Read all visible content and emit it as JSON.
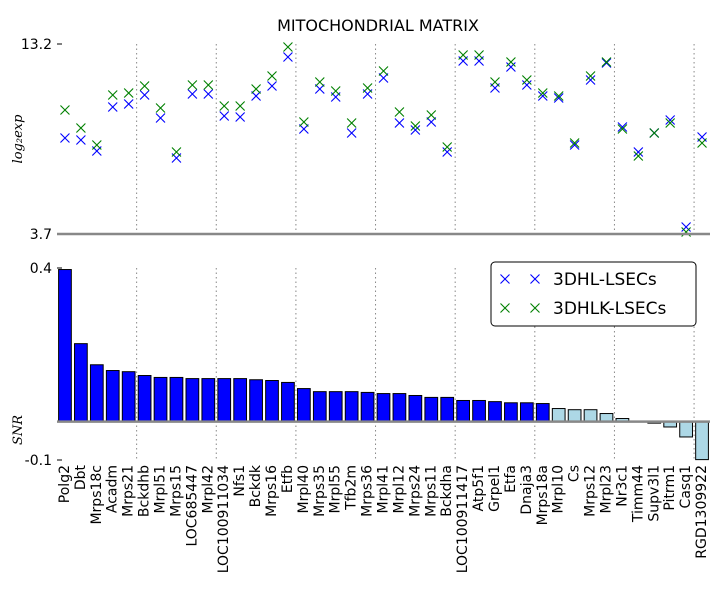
{
  "chart_data": [
    {
      "type": "scatter",
      "title": "MITOCHONDRIAL MATRIX",
      "ylabel": "log₂exp",
      "ylim": [
        3.7,
        13.2
      ],
      "yticks": [
        3.7,
        13.2
      ],
      "legend": "upper right",
      "series": [
        {
          "name": "3DHL-LSECs",
          "color": "#0000ff",
          "values": [
            8.5,
            8.4,
            7.85,
            10.05,
            10.2,
            10.65,
            9.5,
            7.5,
            10.7,
            10.7,
            9.6,
            9.55,
            10.6,
            11.1,
            12.55,
            8.95,
            10.95,
            10.55,
            8.75,
            10.7,
            11.5,
            9.25,
            8.9,
            9.3,
            7.8,
            12.35,
            12.35,
            11.0,
            12.05,
            11.15,
            10.6,
            10.5,
            8.15,
            11.4,
            12.25,
            9.05,
            7.8,
            8.75,
            9.4,
            4.05,
            8.55
          ]
        },
        {
          "name": "3DHLK-LSECs",
          "color": "#008000",
          "values": [
            9.9,
            9.0,
            8.15,
            10.65,
            10.75,
            11.1,
            10.0,
            7.8,
            11.15,
            11.15,
            10.1,
            10.1,
            10.95,
            11.6,
            13.05,
            9.3,
            11.3,
            10.85,
            9.25,
            11.0,
            11.85,
            9.8,
            9.1,
            9.65,
            8.05,
            12.65,
            12.65,
            11.3,
            12.3,
            11.4,
            10.75,
            10.6,
            8.25,
            11.6,
            12.3,
            8.95,
            7.6,
            8.75,
            9.25,
            3.8,
            8.25
          ]
        }
      ]
    },
    {
      "type": "bar",
      "ylabel": "SNR",
      "ylim": [
        -0.1,
        0.4
      ],
      "yticks": [
        0.4,
        -0.1
      ],
      "categories": [
        "Polg2",
        "Dbt",
        "Mrps18c",
        "Acadm",
        "Mrps21",
        "Bckdhb",
        "Mrpl51",
        "Mrps15",
        "LOC685447",
        "Mrpl42",
        "LOC100911034",
        "Nfs1",
        "Bckdk",
        "Mrps16",
        "Etfb",
        "Mrpl40",
        "Mrps35",
        "Mrpl55",
        "Tfb2m",
        "Mrps36",
        "Mrpl41",
        "Mrpl12",
        "Mrps24",
        "Mrps11",
        "Bckdha",
        "LOC100911417",
        "Atp5f1",
        "Grpel1",
        "Etfa",
        "Dnaja3",
        "Mrps18a",
        "Mrpl10",
        "Cs",
        "Mrps12",
        "Mrpl23",
        "Nr3c1",
        "Timm44",
        "Supv3l1",
        "Pitrm1",
        "Casq1",
        "RGD1309922"
      ],
      "values": [
        0.396,
        0.203,
        0.148,
        0.133,
        0.13,
        0.12,
        0.115,
        0.115,
        0.112,
        0.112,
        0.112,
        0.112,
        0.109,
        0.107,
        0.102,
        0.086,
        0.078,
        0.078,
        0.078,
        0.076,
        0.073,
        0.073,
        0.068,
        0.063,
        0.063,
        0.055,
        0.055,
        0.052,
        0.049,
        0.049,
        0.047,
        0.034,
        0.031,
        0.031,
        0.021,
        0.008,
        0.001,
        -0.004,
        -0.014,
        -0.04,
        -0.099
      ],
      "colors": [
        "#0000ff",
        "#0000ff",
        "#0000ff",
        "#0000ff",
        "#0000ff",
        "#0000ff",
        "#0000ff",
        "#0000ff",
        "#0000ff",
        "#0000ff",
        "#0000ff",
        "#0000ff",
        "#0000ff",
        "#0000ff",
        "#0000ff",
        "#0000ff",
        "#0000ff",
        "#0000ff",
        "#0000ff",
        "#0000ff",
        "#0000ff",
        "#0000ff",
        "#0000ff",
        "#0000ff",
        "#0000ff",
        "#0000ff",
        "#0000ff",
        "#0000ff",
        "#0000ff",
        "#0000ff",
        "#0000ff",
        "#add8e6",
        "#add8e6",
        "#add8e6",
        "#add8e6",
        "#add8e6",
        "#add8e6",
        "#add8e6",
        "#add8e6",
        "#add8e6",
        "#add8e6"
      ]
    }
  ]
}
